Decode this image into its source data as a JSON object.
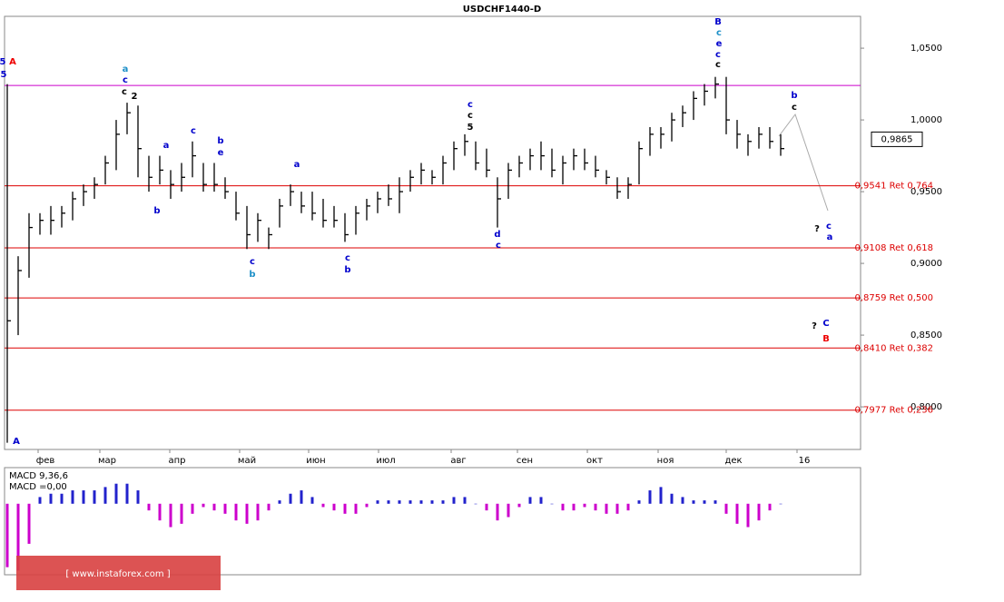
{
  "chart_data": {
    "type": "ohlc",
    "title": "USDCHF1440-D",
    "ylim": [
      0.7703,
      1.0722
    ],
    "yticks": [
      {
        "value": 1.05,
        "label": "1,0500"
      },
      {
        "value": 1.0,
        "label": "1,0000"
      },
      {
        "value": 0.95,
        "label": "0,9500"
      },
      {
        "value": 0.9,
        "label": "0,9000"
      },
      {
        "value": 0.85,
        "label": "0,8500"
      },
      {
        "value": 0.8,
        "label": "0,8000"
      }
    ],
    "month_labels": [
      "фев",
      "мар",
      "апр",
      "май",
      "июн",
      "июл",
      "авг",
      "сен",
      "окт",
      "ноя",
      "дек",
      "16"
    ],
    "high": [
      1.025,
      0.905,
      0.935,
      0.935,
      0.94,
      0.94,
      0.95,
      0.955,
      0.96,
      0.975,
      1.0,
      1.012,
      1.01,
      0.975,
      0.975,
      0.965,
      0.97,
      0.985,
      0.97,
      0.97,
      0.96,
      0.95,
      0.94,
      0.935,
      0.925,
      0.945,
      0.955,
      0.95,
      0.95,
      0.945,
      0.94,
      0.935,
      0.94,
      0.945,
      0.95,
      0.955,
      0.96,
      0.965,
      0.97,
      0.965,
      0.975,
      0.985,
      0.99,
      0.985,
      0.98,
      0.96,
      0.97,
      0.975,
      0.98,
      0.985,
      0.98,
      0.975,
      0.98,
      0.98,
      0.975,
      0.965,
      0.96,
      0.96,
      0.985,
      0.995,
      0.995,
      1.005,
      1.01,
      1.02,
      1.025,
      1.03,
      1.03,
      1.0,
      0.99,
      0.995,
      0.995,
      0.99
    ],
    "low": [
      0.775,
      0.85,
      0.89,
      0.92,
      0.92,
      0.925,
      0.93,
      0.94,
      0.945,
      0.955,
      0.965,
      0.99,
      0.96,
      0.95,
      0.955,
      0.945,
      0.95,
      0.96,
      0.95,
      0.95,
      0.945,
      0.93,
      0.91,
      0.915,
      0.91,
      0.925,
      0.94,
      0.935,
      0.93,
      0.925,
      0.925,
      0.915,
      0.92,
      0.93,
      0.935,
      0.94,
      0.935,
      0.95,
      0.955,
      0.955,
      0.955,
      0.965,
      0.975,
      0.965,
      0.96,
      0.925,
      0.945,
      0.96,
      0.965,
      0.965,
      0.96,
      0.955,
      0.965,
      0.965,
      0.96,
      0.955,
      0.945,
      0.945,
      0.955,
      0.975,
      0.98,
      0.985,
      0.995,
      1.0,
      1.01,
      1.015,
      0.99,
      0.98,
      0.975,
      0.98,
      0.98,
      0.975
    ],
    "close": [
      0.86,
      0.895,
      0.925,
      0.93,
      0.93,
      0.935,
      0.945,
      0.95,
      0.955,
      0.97,
      0.99,
      1.005,
      0.98,
      0.96,
      0.965,
      0.955,
      0.96,
      0.975,
      0.955,
      0.955,
      0.95,
      0.935,
      0.92,
      0.93,
      0.92,
      0.94,
      0.95,
      0.94,
      0.935,
      0.93,
      0.93,
      0.92,
      0.935,
      0.94,
      0.945,
      0.945,
      0.95,
      0.96,
      0.965,
      0.96,
      0.97,
      0.98,
      0.985,
      0.97,
      0.965,
      0.945,
      0.965,
      0.97,
      0.975,
      0.975,
      0.965,
      0.97,
      0.975,
      0.97,
      0.965,
      0.96,
      0.95,
      0.955,
      0.98,
      0.99,
      0.99,
      1.0,
      1.005,
      1.015,
      1.02,
      1.025,
      1.0,
      0.99,
      0.985,
      0.99,
      0.985,
      0.98
    ],
    "color": "#000000",
    "resistance": {
      "value": 1.024,
      "color": "#cc00cc"
    },
    "levels": [
      {
        "value": 0.9541,
        "label": "0,9541 Ret 0,764"
      },
      {
        "value": 0.9108,
        "label": "0,9108 Ret 0,618"
      },
      {
        "value": 0.8759,
        "label": "0,8759 Ret 0,500"
      },
      {
        "value": 0.841,
        "label": "0,8410 Ret 0,382"
      },
      {
        "value": 0.7977,
        "label": "0,7977 Ret 0,236"
      }
    ],
    "levels_color": "#dd0000",
    "current_price": {
      "value": 0.9865,
      "label": "0,9865"
    },
    "annotations": [
      {
        "text": "5",
        "color": "#0000cc"
      },
      {
        "text": "A",
        "color": "#ee0000"
      },
      {
        "text": "5",
        "color": "#0000cc"
      },
      {
        "text": "A",
        "color": "#0000cc"
      },
      {
        "text": "a",
        "color": "#1e90c8"
      },
      {
        "text": "c",
        "color": "#0000cc"
      },
      {
        "text": "c",
        "color": "#000000"
      },
      {
        "text": "2",
        "color": "#000000"
      },
      {
        "text": "B",
        "color": "#0000cc"
      },
      {
        "text": "c",
        "color": "#1e90c8"
      },
      {
        "text": "e",
        "color": "#0000cc"
      },
      {
        "text": "c",
        "color": "#0000cc"
      },
      {
        "text": "c",
        "color": "#000000"
      },
      {
        "text": "c",
        "color": "#0000cc"
      },
      {
        "text": "c",
        "color": "#000000"
      },
      {
        "text": "5",
        "color": "#000000"
      },
      {
        "text": "b",
        "color": "#0000cc"
      },
      {
        "text": "e",
        "color": "#0000cc"
      },
      {
        "text": "c",
        "color": "#0000cc"
      },
      {
        "text": "a",
        "color": "#0000cc"
      },
      {
        "text": "a",
        "color": "#0000cc"
      },
      {
        "text": "b",
        "color": "#0000cc"
      },
      {
        "text": "c",
        "color": "#0000cc"
      },
      {
        "text": "b",
        "color": "#1e90c8"
      },
      {
        "text": "c",
        "color": "#0000cc"
      },
      {
        "text": "b",
        "color": "#0000cc"
      },
      {
        "text": "c",
        "color": "#0000cc"
      },
      {
        "text": "d",
        "color": "#0000cc"
      },
      {
        "text": "?",
        "color": "#000000"
      },
      {
        "text": "c",
        "color": "#0000cc"
      },
      {
        "text": "a",
        "color": "#0000cc"
      },
      {
        "text": "?",
        "color": "#000000"
      },
      {
        "text": "C",
        "color": "#0000cc"
      },
      {
        "text": "B",
        "color": "#ee0000"
      },
      {
        "text": "b",
        "color": "#0000cc"
      },
      {
        "text": "c",
        "color": "#000000"
      }
    ],
    "macd_label": "MACD 9,36,6",
    "macd_value_label": "MACD =0,00",
    "macd_ylim": [
      -0.021,
      0.01
    ],
    "macd_colors": {
      "positive": "#2222cc",
      "negative": "#cc00cc"
    },
    "macd": [
      -0.019,
      -0.02,
      -0.012,
      0.002,
      0.003,
      0.003,
      0.004,
      0.004,
      0.004,
      0.005,
      0.006,
      0.006,
      0.004,
      -0.002,
      -0.005,
      -0.007,
      -0.006,
      -0.003,
      -0.001,
      -0.002,
      -0.003,
      -0.005,
      -0.006,
      -0.005,
      -0.002,
      0.001,
      0.003,
      0.004,
      0.002,
      -0.001,
      -0.002,
      -0.003,
      -0.003,
      -0.001,
      0.001,
      0.001,
      0.001,
      0.001,
      0.001,
      0.001,
      0.001,
      0.002,
      0.002,
      0,
      -0.002,
      -0.005,
      -0.004,
      -0.001,
      0.002,
      0.002,
      0,
      -0.002,
      -0.002,
      -0.001,
      -0.002,
      -0.003,
      -0.003,
      -0.002,
      0.001,
      0.004,
      0.005,
      0.003,
      0.002,
      0.001,
      0.001,
      0.001,
      -0.003,
      -0.006,
      -0.007,
      -0.005,
      -0.002,
      0
    ],
    "watermark": "[ www.instaforex.com ]"
  }
}
